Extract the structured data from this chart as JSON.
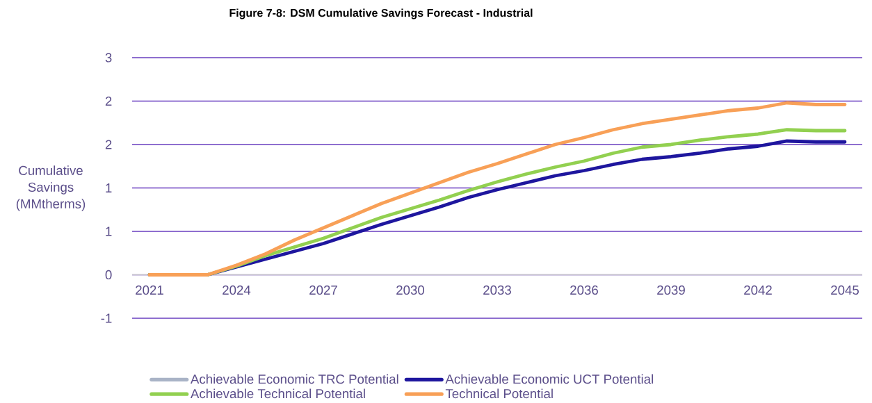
{
  "chart_data": {
    "type": "line",
    "title": "Figure 7-8: DSM Cumulative Savings Forecast - Industrial",
    "ylabel": "Cumulative Savings (MMtherms)",
    "x": [
      2021,
      2022,
      2023,
      2024,
      2025,
      2026,
      2027,
      2028,
      2029,
      2030,
      2031,
      2032,
      2033,
      2034,
      2035,
      2036,
      2037,
      2038,
      2039,
      2040,
      2041,
      2042,
      2043,
      2044,
      2045
    ],
    "xlim": [
      2020.4,
      2045.6
    ],
    "xticks": [
      2021,
      2024,
      2027,
      2030,
      2033,
      2036,
      2039,
      2042,
      2045
    ],
    "ylim": [
      -0.5,
      2.5
    ],
    "yticks": [
      {
        "value": -0.5,
        "label": "-1"
      },
      0,
      {
        "value": 0.5,
        "label": "1"
      },
      1,
      {
        "value": 1.5,
        "label": "2"
      },
      2,
      {
        "value": 2.5,
        "label": "3"
      }
    ],
    "grid": "y",
    "legend": "bottom",
    "line_style": "solid",
    "marker": "none",
    "series": [
      {
        "name": "Achievable Economic TRC Potential",
        "color": "#a9b3c6",
        "values": [
          null,
          null,
          null,
          null,
          null,
          null,
          null,
          null,
          null,
          null,
          null,
          null,
          null,
          null,
          null,
          null,
          null,
          null,
          null,
          null,
          null,
          null,
          null,
          null,
          null
        ]
      },
      {
        "name": "Achievable Economic UCT Potential",
        "color": "#1e169e",
        "values": [
          0,
          0,
          0,
          0.09,
          0.18,
          0.27,
          0.36,
          0.47,
          0.58,
          0.68,
          0.78,
          0.89,
          0.98,
          1.06,
          1.14,
          1.2,
          1.27,
          1.33,
          1.36,
          1.4,
          1.45,
          1.48,
          1.54,
          1.53,
          1.53
        ]
      },
      {
        "name": "Achievable Technical Potential",
        "color": "#92d050",
        "values": [
          0,
          0,
          0,
          0.1,
          0.22,
          0.32,
          0.42,
          0.54,
          0.66,
          0.76,
          0.86,
          0.97,
          1.07,
          1.16,
          1.24,
          1.31,
          1.4,
          1.47,
          1.5,
          1.55,
          1.59,
          1.62,
          1.67,
          1.66,
          1.66
        ]
      },
      {
        "name": "Technical Potential",
        "color": "#f8a057",
        "values": [
          0,
          0,
          0,
          0.11,
          0.24,
          0.4,
          0.54,
          0.68,
          0.82,
          0.94,
          1.06,
          1.18,
          1.28,
          1.39,
          1.5,
          1.58,
          1.67,
          1.74,
          1.79,
          1.84,
          1.89,
          1.92,
          1.98,
          1.96,
          1.96
        ]
      }
    ]
  }
}
